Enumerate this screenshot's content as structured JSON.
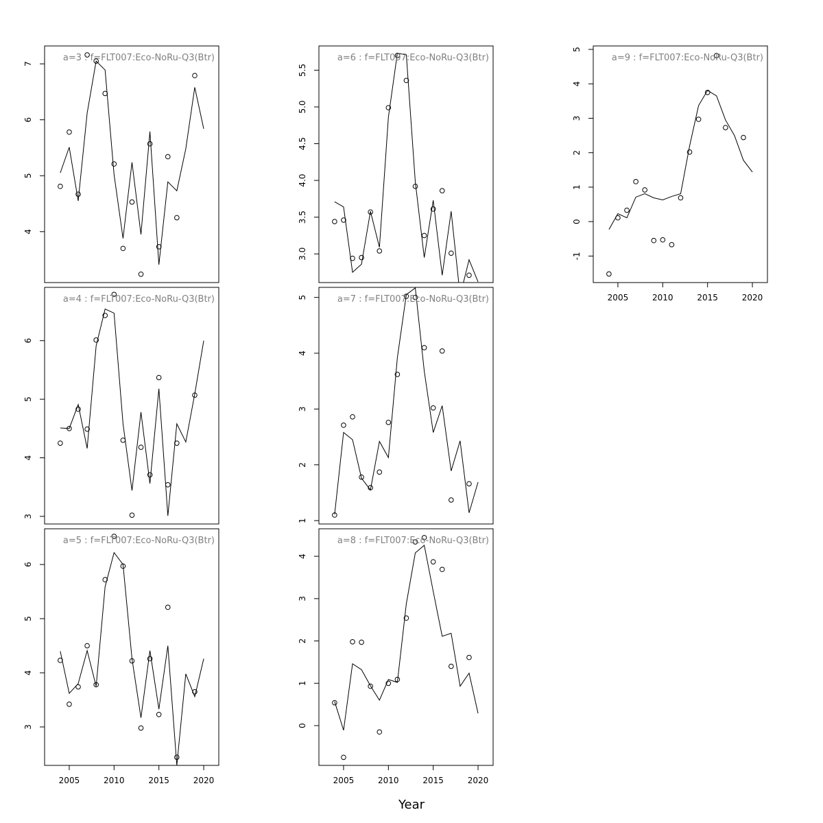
{
  "xlabel": "Year",
  "chart_data": [
    {
      "type": "line",
      "title": "a=3 : f=FLT007:Eco-NoRu-Q3(Btr)",
      "x": [
        2004,
        2005,
        2006,
        2007,
        2008,
        2009,
        2010,
        2011,
        2012,
        2013,
        2014,
        2015,
        2016,
        2017,
        2018,
        2019,
        2020
      ],
      "xlim": [
        2002.25,
        2021.68
      ],
      "ylim": [
        3.09,
        7.32
      ],
      "yticks": [
        4,
        5,
        6,
        7
      ],
      "series": [
        {
          "mode": "line",
          "color": "#000000",
          "values": [
            5.05,
            5.51,
            4.55,
            6.12,
            7.05,
            6.89,
            5.02,
            3.88,
            5.24,
            3.95,
            5.79,
            3.41,
            4.89,
            4.73,
            5.48,
            6.58,
            5.84
          ]
        },
        {
          "mode": "points",
          "color": "#000000",
          "values": [
            4.81,
            5.78,
            4.67,
            7.16,
            7.05,
            6.47,
            5.21,
            3.7,
            4.53,
            3.24,
            5.57,
            3.73,
            5.34,
            4.25,
            null,
            6.79,
            null
          ]
        }
      ]
    },
    {
      "type": "line",
      "title": "a=4 : f=FLT007:Eco-NoRu-Q3(Btr)",
      "x": [
        2004,
        2005,
        2006,
        2007,
        2008,
        2009,
        2010,
        2011,
        2012,
        2013,
        2014,
        2015,
        2016,
        2017,
        2018,
        2019,
        2020
      ],
      "xlim": [
        2002.25,
        2021.68
      ],
      "ylim": [
        2.87,
        6.91
      ],
      "yticks": [
        3,
        4,
        5,
        6
      ],
      "series": [
        {
          "mode": "line",
          "color": "#000000",
          "values": [
            4.51,
            4.5,
            4.91,
            4.16,
            5.91,
            6.54,
            6.47,
            4.58,
            3.44,
            4.78,
            3.56,
            5.18,
            3.01,
            4.58,
            4.27,
            5.09,
            6.0
          ]
        },
        {
          "mode": "points",
          "color": "#000000",
          "values": [
            4.25,
            4.5,
            4.83,
            4.49,
            6.01,
            6.43,
            6.79,
            4.3,
            3.02,
            4.18,
            3.71,
            5.37,
            3.54,
            4.25,
            null,
            5.07,
            null
          ]
        }
      ]
    },
    {
      "type": "line",
      "title": "a=5 : f=FLT007:Eco-NoRu-Q3(Btr)",
      "x": [
        2004,
        2005,
        2006,
        2007,
        2008,
        2009,
        2010,
        2011,
        2012,
        2013,
        2014,
        2015,
        2016,
        2017,
        2018,
        2019,
        2020
      ],
      "xlim": [
        2002.25,
        2021.68
      ],
      "ylim": [
        2.29,
        6.66
      ],
      "yticks": [
        3,
        4,
        5,
        6
      ],
      "xticks": [
        2005,
        2010,
        2015,
        2020
      ],
      "series": [
        {
          "mode": "line",
          "color": "#000000",
          "values": [
            4.4,
            3.62,
            3.8,
            4.41,
            3.75,
            5.59,
            6.22,
            6.0,
            4.26,
            3.17,
            4.41,
            3.33,
            4.5,
            2.29,
            3.98,
            3.56,
            4.26
          ]
        },
        {
          "mode": "points",
          "color": "#000000",
          "values": [
            4.23,
            3.42,
            3.74,
            4.5,
            3.78,
            5.72,
            6.52,
            5.97,
            4.22,
            2.98,
            4.26,
            3.23,
            5.21,
            2.44,
            null,
            3.65,
            null
          ]
        }
      ]
    },
    {
      "type": "line",
      "title": "a=6 : f=FLT007:Eco-NoRu-Q3(Btr)",
      "x": [
        2004,
        2005,
        2006,
        2007,
        2008,
        2009,
        2010,
        2011,
        2012,
        2013,
        2014,
        2015,
        2016,
        2017,
        2018,
        2019,
        2020
      ],
      "xlim": [
        2002.25,
        2021.68
      ],
      "ylim": [
        2.61,
        5.83
      ],
      "yticks": [
        {
          "value": 3,
          "label": "3.0"
        },
        3.5,
        {
          "value": 4,
          "label": "4.0"
        },
        4.5,
        {
          "value": 5,
          "label": "5.0"
        },
        5.5
      ],
      "series": [
        {
          "mode": "line",
          "color": "#000000",
          "values": [
            3.71,
            3.64,
            2.75,
            2.86,
            3.58,
            3.09,
            4.86,
            5.73,
            5.71,
            3.98,
            2.95,
            3.73,
            2.71,
            3.58,
            2.43,
            2.92,
            2.62
          ]
        },
        {
          "mode": "points",
          "color": "#000000",
          "values": [
            3.44,
            3.46,
            2.94,
            2.95,
            3.57,
            3.04,
            4.99,
            5.7,
            5.36,
            3.92,
            3.25,
            3.61,
            3.86,
            3.01,
            null,
            2.71,
            null
          ]
        }
      ]
    },
    {
      "type": "line",
      "title": "a=7 : f=FLT007:Eco-NoRu-Q3(Btr)",
      "x": [
        2004,
        2005,
        2006,
        2007,
        2008,
        2009,
        2010,
        2011,
        2012,
        2013,
        2014,
        2015,
        2016,
        2017,
        2018,
        2019,
        2020
      ],
      "xlim": [
        2002.25,
        2021.68
      ],
      "ylim": [
        0.94,
        5.18
      ],
      "yticks": [
        1,
        2,
        3,
        4,
        5
      ],
      "series": [
        {
          "mode": "line",
          "color": "#000000",
          "values": [
            1.11,
            2.58,
            2.45,
            1.76,
            1.55,
            2.42,
            2.13,
            3.92,
            5.05,
            5.17,
            3.68,
            2.58,
            3.06,
            1.89,
            2.43,
            1.14,
            1.69
          ]
        },
        {
          "mode": "points",
          "color": "#000000",
          "values": [
            1.1,
            2.71,
            2.86,
            1.78,
            1.59,
            1.87,
            2.76,
            3.62,
            5.02,
            5.0,
            4.1,
            3.02,
            4.04,
            1.37,
            null,
            1.66,
            null
          ]
        }
      ]
    },
    {
      "type": "line",
      "title": "a=8 : f=FLT007:Eco-NoRu-Q3(Btr)",
      "x": [
        2004,
        2005,
        2006,
        2007,
        2008,
        2009,
        2010,
        2011,
        2012,
        2013,
        2014,
        2015,
        2016,
        2017,
        2018,
        2019,
        2020
      ],
      "xlim": [
        2002.25,
        2021.68
      ],
      "ylim": [
        -0.94,
        4.65
      ],
      "yticks": [
        0,
        1,
        2,
        3,
        4
      ],
      "xticks": [
        2005,
        2010,
        2015,
        2020
      ],
      "series": [
        {
          "mode": "line",
          "color": "#000000",
          "values": [
            0.57,
            -0.11,
            1.46,
            1.32,
            0.94,
            0.6,
            1.09,
            1.02,
            2.88,
            4.08,
            4.26,
            3.17,
            2.11,
            2.18,
            0.93,
            1.24,
            0.29
          ]
        },
        {
          "mode": "points",
          "color": "#000000",
          "values": [
            0.54,
            -0.75,
            1.98,
            1.97,
            0.93,
            -0.15,
            1.0,
            1.09,
            2.54,
            4.34,
            4.44,
            3.87,
            3.69,
            1.4,
            null,
            1.61,
            null
          ]
        }
      ]
    },
    {
      "type": "line",
      "title": "a=9 : f=FLT007:Eco-NoRu-Q3(Btr)",
      "x": [
        2004,
        2005,
        2006,
        2007,
        2008,
        2009,
        2010,
        2011,
        2012,
        2013,
        2014,
        2015,
        2016,
        2017,
        2018,
        2019,
        2020
      ],
      "xlim": [
        2002.25,
        2021.68
      ],
      "ylim": [
        -1.77,
        5.1
      ],
      "yticks": [
        -1,
        0,
        1,
        2,
        3,
        4,
        5
      ],
      "xticks": [
        2005,
        2010,
        2015,
        2020
      ],
      "series": [
        {
          "mode": "line",
          "color": "#000000",
          "values": [
            -0.23,
            0.23,
            0.11,
            0.71,
            0.81,
            0.69,
            0.63,
            0.73,
            0.81,
            2.2,
            3.37,
            3.81,
            3.65,
            2.95,
            2.5,
            1.78,
            1.44
          ]
        },
        {
          "mode": "points",
          "color": "#000000",
          "values": [
            -1.52,
            0.11,
            0.33,
            1.16,
            0.92,
            -0.55,
            -0.53,
            -0.67,
            0.69,
            2.02,
            2.97,
            3.75,
            4.82,
            2.73,
            null,
            2.44,
            null
          ]
        }
      ]
    }
  ]
}
